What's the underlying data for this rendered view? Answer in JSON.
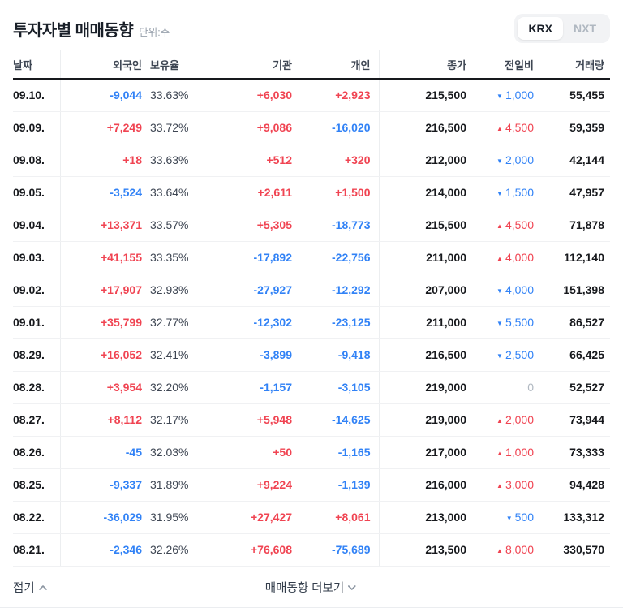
{
  "header": {
    "title": "투자자별 매매동향",
    "unit_label": "단위:주",
    "market_toggle": {
      "options": [
        "KRX",
        "NXT"
      ],
      "selected": "KRX"
    }
  },
  "table": {
    "columns": [
      "날짜",
      "외국인",
      "보유율",
      "기관",
      "개인",
      "종가",
      "전일비",
      "거래량"
    ],
    "rows": [
      {
        "date": "09.10.",
        "foreign": "-9,044",
        "ratio": "33.63%",
        "inst": "+6,030",
        "indiv": "+2,923",
        "close": "215,500",
        "change_dir": "down",
        "change": "1,000",
        "volume": "55,455"
      },
      {
        "date": "09.09.",
        "foreign": "+7,249",
        "ratio": "33.72%",
        "inst": "+9,086",
        "indiv": "-16,020",
        "close": "216,500",
        "change_dir": "up",
        "change": "4,500",
        "volume": "59,359"
      },
      {
        "date": "09.08.",
        "foreign": "+18",
        "ratio": "33.63%",
        "inst": "+512",
        "indiv": "+320",
        "close": "212,000",
        "change_dir": "down",
        "change": "2,000",
        "volume": "42,144"
      },
      {
        "date": "09.05.",
        "foreign": "-3,524",
        "ratio": "33.64%",
        "inst": "+2,611",
        "indiv": "+1,500",
        "close": "214,000",
        "change_dir": "down",
        "change": "1,500",
        "volume": "47,957"
      },
      {
        "date": "09.04.",
        "foreign": "+13,371",
        "ratio": "33.57%",
        "inst": "+5,305",
        "indiv": "-18,773",
        "close": "215,500",
        "change_dir": "up",
        "change": "4,500",
        "volume": "71,878"
      },
      {
        "date": "09.03.",
        "foreign": "+41,155",
        "ratio": "33.35%",
        "inst": "-17,892",
        "indiv": "-22,756",
        "close": "211,000",
        "change_dir": "up",
        "change": "4,000",
        "volume": "112,140"
      },
      {
        "date": "09.02.",
        "foreign": "+17,907",
        "ratio": "32.93%",
        "inst": "-27,927",
        "indiv": "-12,292",
        "close": "207,000",
        "change_dir": "down",
        "change": "4,000",
        "volume": "151,398"
      },
      {
        "date": "09.01.",
        "foreign": "+35,799",
        "ratio": "32.77%",
        "inst": "-12,302",
        "indiv": "-23,125",
        "close": "211,000",
        "change_dir": "down",
        "change": "5,500",
        "volume": "86,527"
      },
      {
        "date": "08.29.",
        "foreign": "+16,052",
        "ratio": "32.41%",
        "inst": "-3,899",
        "indiv": "-9,418",
        "close": "216,500",
        "change_dir": "down",
        "change": "2,500",
        "volume": "66,425"
      },
      {
        "date": "08.28.",
        "foreign": "+3,954",
        "ratio": "32.20%",
        "inst": "-1,157",
        "indiv": "-3,105",
        "close": "219,000",
        "change_dir": "flat",
        "change": "0",
        "volume": "52,527"
      },
      {
        "date": "08.27.",
        "foreign": "+8,112",
        "ratio": "32.17%",
        "inst": "+5,948",
        "indiv": "-14,625",
        "close": "219,000",
        "change_dir": "up",
        "change": "2,000",
        "volume": "73,944"
      },
      {
        "date": "08.26.",
        "foreign": "-45",
        "ratio": "32.03%",
        "inst": "+50",
        "indiv": "-1,165",
        "close": "217,000",
        "change_dir": "up",
        "change": "1,000",
        "volume": "73,333"
      },
      {
        "date": "08.25.",
        "foreign": "-9,337",
        "ratio": "31.89%",
        "inst": "+9,224",
        "indiv": "-1,139",
        "close": "216,000",
        "change_dir": "up",
        "change": "3,000",
        "volume": "94,428"
      },
      {
        "date": "08.22.",
        "foreign": "-36,029",
        "ratio": "31.95%",
        "inst": "+27,427",
        "indiv": "+8,061",
        "close": "213,000",
        "change_dir": "down",
        "change": "500",
        "volume": "133,312"
      },
      {
        "date": "08.21.",
        "foreign": "-2,346",
        "ratio": "32.26%",
        "inst": "+76,608",
        "indiv": "-75,689",
        "close": "213,500",
        "change_dir": "up",
        "change": "8,000",
        "volume": "330,570"
      }
    ]
  },
  "footer": {
    "collapse_label": "접기",
    "more_label": "매매동향 더보기"
  },
  "icons": {
    "up_triangle": "▲",
    "down_triangle": "▼"
  },
  "colors": {
    "up": "#f04452",
    "down": "#3182f6",
    "flat": "#b0b8c1"
  }
}
